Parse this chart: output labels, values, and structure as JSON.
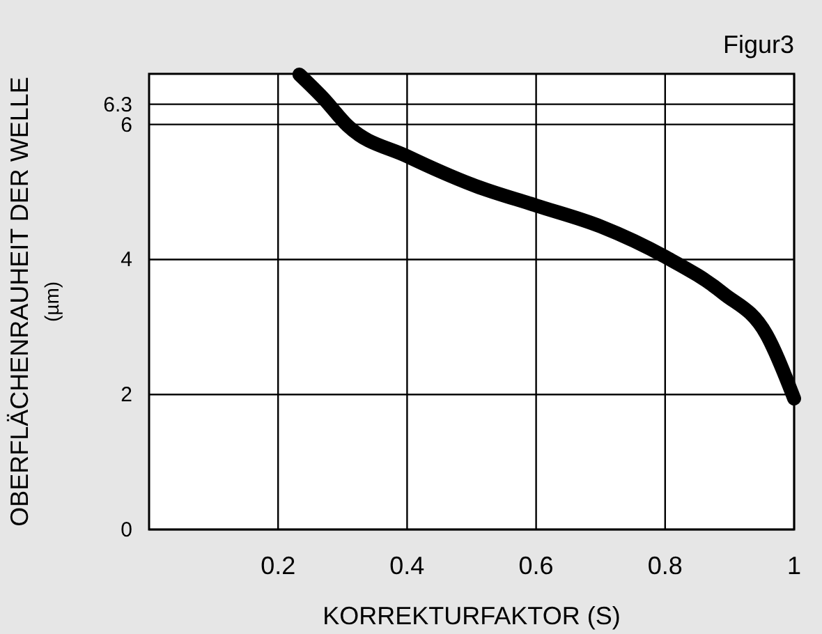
{
  "chart_data": {
    "type": "line",
    "title": "Figur3",
    "xlabel": "KORREKTURFAKTOR (S)",
    "ylabel": "OBERFLÄCHENRAUHEIT DER WELLE\n(µm)",
    "x": [
      0.233,
      0.27,
      0.308,
      0.4,
      0.506,
      0.6,
      0.7,
      0.8,
      0.89,
      0.957,
      1.0
    ],
    "series": [
      {
        "color": "#000000",
        "values": [
          6.74,
          6.39,
          5.98,
          5.53,
          5.09,
          4.8,
          4.49,
          4.04,
          3.5,
          2.89,
          1.94
        ]
      }
    ],
    "xlim": [
      0,
      1
    ],
    "xticks": [
      0.2,
      0.4,
      0.6,
      0.8,
      1
    ],
    "ylim": [
      0,
      6.75
    ],
    "yticks": [
      0,
      2,
      4,
      6,
      6.3
    ],
    "grid": true,
    "marker": "none",
    "line_style": "solid"
  }
}
